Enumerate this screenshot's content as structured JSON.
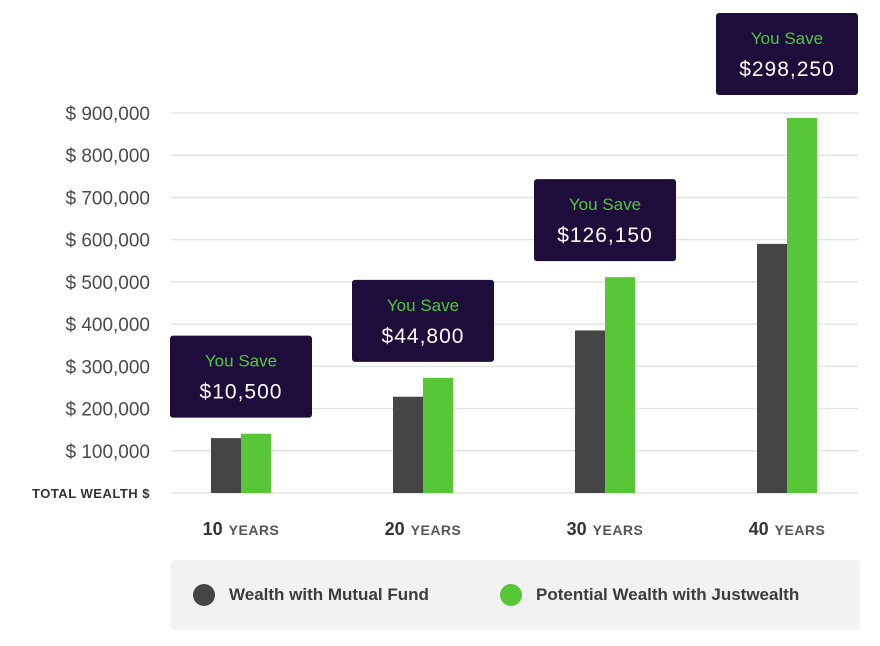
{
  "colors": {
    "mutual_fund": "#454545",
    "justwealth": "#57c738",
    "callout_bg": "#1e0c3a",
    "callout_label": "#4ec93a",
    "callout_value": "#ffffff",
    "grid": "#e3e3e3"
  },
  "chart_data": {
    "type": "bar",
    "categories": [
      {
        "num": "10",
        "unit": "YEARS"
      },
      {
        "num": "20",
        "unit": "YEARS"
      },
      {
        "num": "30",
        "unit": "YEARS"
      },
      {
        "num": "40",
        "unit": "YEARS"
      }
    ],
    "series": [
      {
        "name": "Wealth with Mutual Fund",
        "values": [
          130000,
          228000,
          385000,
          590000
        ]
      },
      {
        "name": "Potential Wealth with Justwealth",
        "values": [
          140500,
          272800,
          511150,
          888250
        ]
      }
    ],
    "ylabel": "TOTAL WEALTH $",
    "ylim": [
      0,
      900000
    ],
    "yticks": [
      {
        "value": 100000,
        "label": "$ 100,000"
      },
      {
        "value": 200000,
        "label": "$ 200,000"
      },
      {
        "value": 300000,
        "label": "$ 300,000"
      },
      {
        "value": 400000,
        "label": "$ 400,000"
      },
      {
        "value": 500000,
        "label": "$ 500,000"
      },
      {
        "value": 600000,
        "label": "$ 600,000"
      },
      {
        "value": 700000,
        "label": "$ 700,000"
      },
      {
        "value": 800000,
        "label": "$ 800,000"
      },
      {
        "value": 900000,
        "label": "$ 900,000"
      }
    ],
    "annotations": [
      {
        "label": "You Save",
        "value": "$10,500"
      },
      {
        "label": "You Save",
        "value": "$44,800"
      },
      {
        "label": "You Save",
        "value": "$126,150"
      },
      {
        "label": "You Save",
        "value": "$298,250"
      }
    ],
    "grid": true,
    "legend_position": "bottom"
  }
}
